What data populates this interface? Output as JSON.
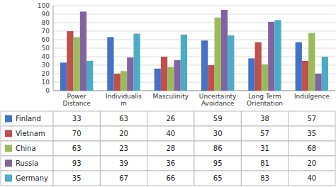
{
  "chart_data": {
    "type": "bar",
    "categories": [
      "Power\nDistance",
      "Individualis\nm",
      "Masculinity",
      "Uncertainty\nAvoidance",
      "Long Term\nOrientation",
      "Indulgence"
    ],
    "series": [
      {
        "name": "Finland",
        "color": "#4472C4",
        "values": [
          33,
          63,
          26,
          59,
          38,
          57
        ]
      },
      {
        "name": "Vietnam",
        "color": "#C0504D",
        "values": [
          70,
          20,
          40,
          30,
          57,
          35
        ]
      },
      {
        "name": "China",
        "color": "#9BBB59",
        "values": [
          63,
          23,
          28,
          86,
          31,
          68
        ]
      },
      {
        "name": "Russia",
        "color": "#8064A2",
        "values": [
          93,
          39,
          36,
          95,
          81,
          20
        ]
      },
      {
        "name": "Germany",
        "color": "#4BACC6",
        "values": [
          35,
          67,
          66,
          65,
          83,
          40
        ]
      }
    ],
    "ylim": [
      0,
      100
    ],
    "yticks": [
      0,
      10,
      20,
      30,
      40,
      50,
      60,
      70,
      80,
      90,
      100
    ],
    "grid": true,
    "legend": "bottom"
  }
}
